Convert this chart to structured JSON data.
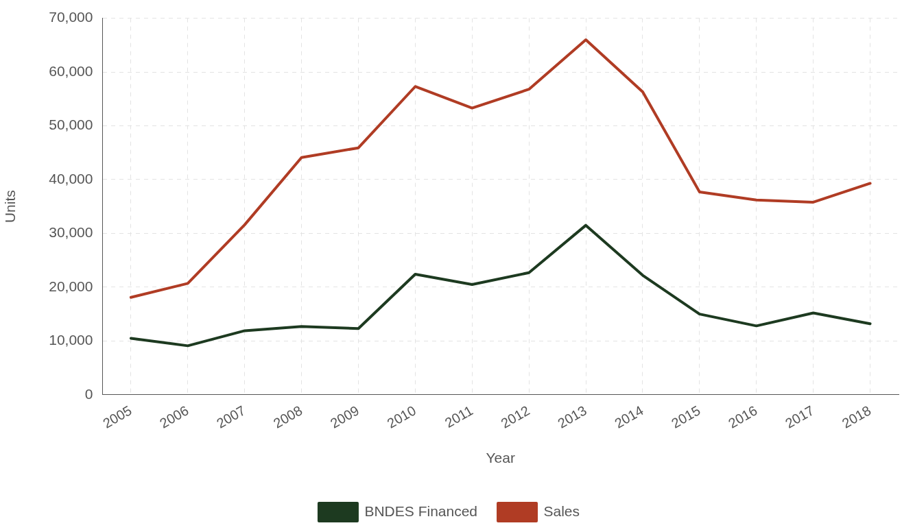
{
  "chart_data": {
    "type": "line",
    "xlabel": "Year",
    "ylabel": "Units",
    "categories": [
      "2005",
      "2006",
      "2007",
      "2008",
      "2009",
      "2010",
      "2011",
      "2012",
      "2013",
      "2014",
      "2015",
      "2016",
      "2017",
      "2018"
    ],
    "series": [
      {
        "name": "BNDES Financed",
        "color": "#1d3a20",
        "values": [
          10500,
          9100,
          11900,
          12700,
          12300,
          22400,
          20500,
          22700,
          31500,
          22200,
          15000,
          12800,
          15200,
          13200
        ]
      },
      {
        "name": "Sales",
        "color": "#b03c24",
        "values": [
          18100,
          20700,
          31600,
          44100,
          45900,
          57300,
          53300,
          56800,
          66000,
          56300,
          37700,
          36200,
          35800,
          39300
        ]
      }
    ],
    "ylim": [
      0,
      70000
    ],
    "yticks": [
      {
        "value": 0,
        "label": "0"
      },
      {
        "value": 10000,
        "label": "10,000"
      },
      {
        "value": 20000,
        "label": "20,000"
      },
      {
        "value": 30000,
        "label": "30,000"
      },
      {
        "value": 40000,
        "label": "40,000"
      },
      {
        "value": 50000,
        "label": "50,000"
      },
      {
        "value": 60000,
        "label": "60,000"
      },
      {
        "value": 70000,
        "label": "70,000"
      }
    ],
    "grid": true,
    "legend": "bottom",
    "marker": "none",
    "line_style": "solid"
  }
}
